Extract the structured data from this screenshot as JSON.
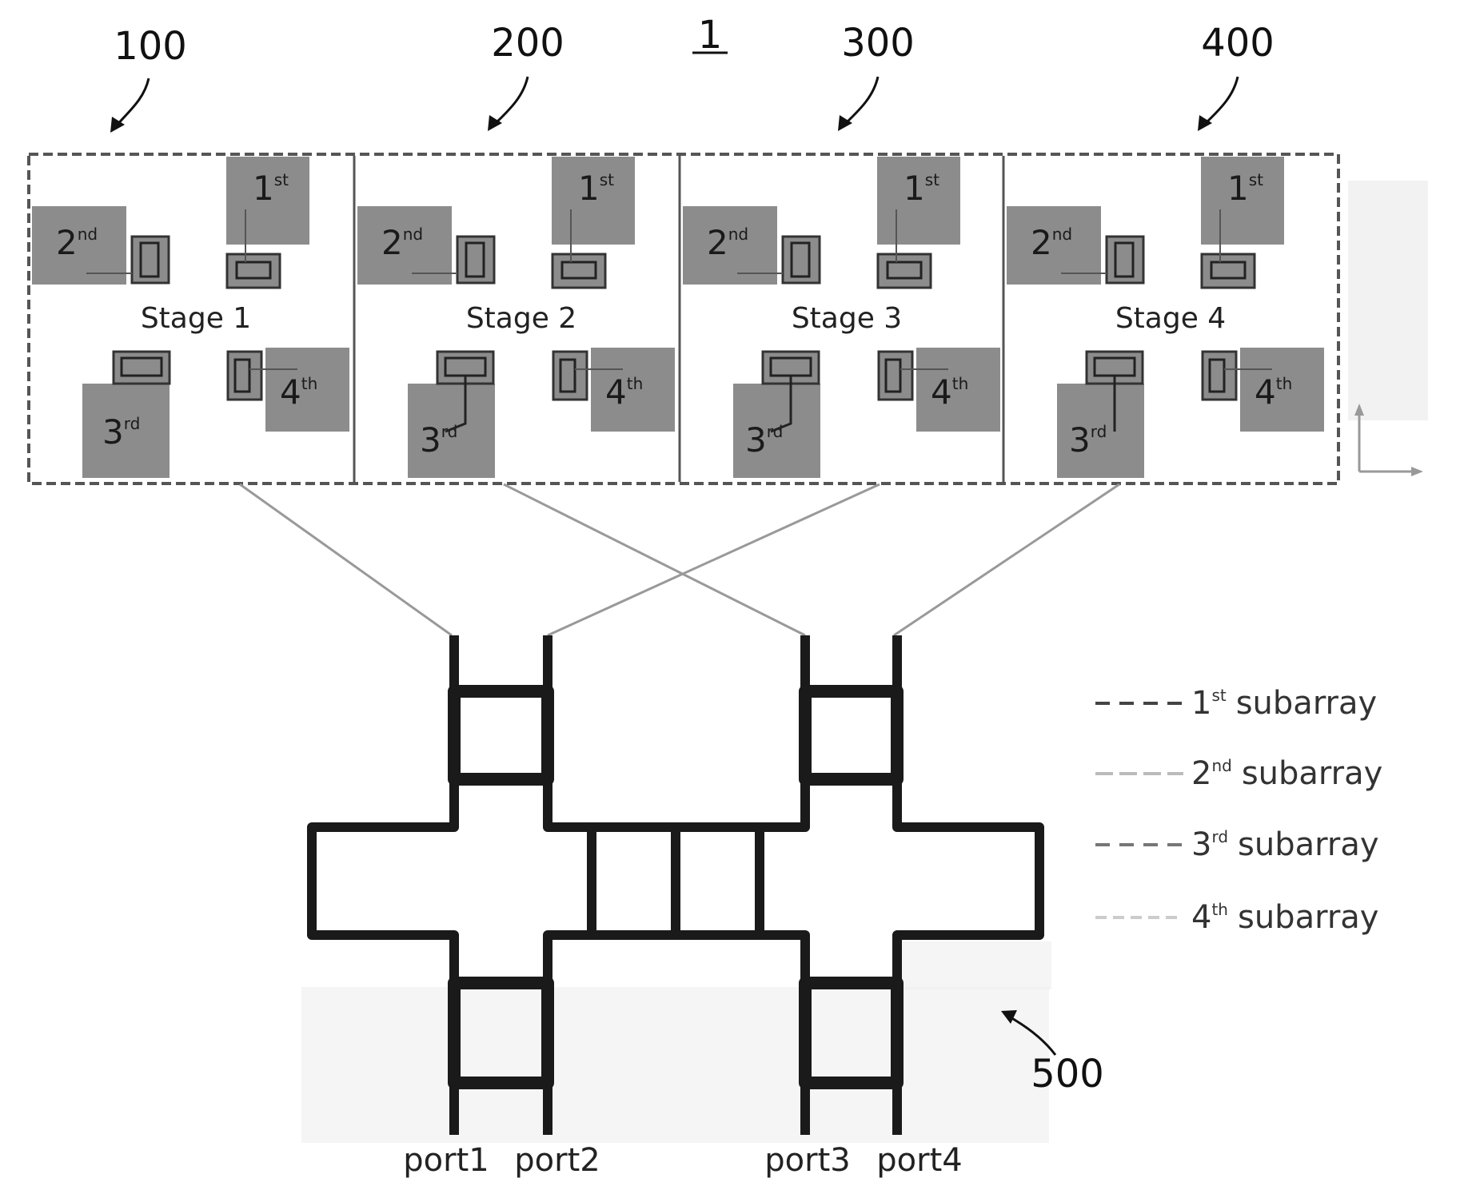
{
  "figure": {
    "number": "1",
    "stage_refs": [
      "100",
      "200",
      "300",
      "400"
    ],
    "network_ref": "500"
  },
  "stages": [
    {
      "label": "Stage 1",
      "elements": [
        {
          "num": "1",
          "sup": "st"
        },
        {
          "num": "2",
          "sup": "nd"
        },
        {
          "num": "3",
          "sup": "rd"
        },
        {
          "num": "4",
          "sup": "th"
        }
      ]
    },
    {
      "label": "Stage 2",
      "elements": [
        {
          "num": "1",
          "sup": "st"
        },
        {
          "num": "2",
          "sup": "nd"
        },
        {
          "num": "3",
          "sup": "rd"
        },
        {
          "num": "4",
          "sup": "th"
        }
      ]
    },
    {
      "label": "Stage 3",
      "elements": [
        {
          "num": "1",
          "sup": "st"
        },
        {
          "num": "2",
          "sup": "nd"
        },
        {
          "num": "3",
          "sup": "rd"
        },
        {
          "num": "4",
          "sup": "th"
        }
      ]
    },
    {
      "label": "Stage 4",
      "elements": [
        {
          "num": "1",
          "sup": "st"
        },
        {
          "num": "2",
          "sup": "nd"
        },
        {
          "num": "3",
          "sup": "rd"
        },
        {
          "num": "4",
          "sup": "th"
        }
      ]
    }
  ],
  "legend": [
    {
      "num": "1",
      "sup": "st",
      "text": "subarray"
    },
    {
      "num": "2",
      "sup": "nd",
      "text": "subarray"
    },
    {
      "num": "3",
      "sup": "rd",
      "text": "subarray"
    },
    {
      "num": "4",
      "sup": "th",
      "text": "subarray"
    }
  ],
  "ports": [
    "port1",
    "port2",
    "port3",
    "port4"
  ],
  "colors": {
    "patch_fill": "#8c8c8c",
    "frame_stroke": "#555555",
    "network_stroke": "#1a1a1a",
    "feed_line": "#999999"
  }
}
